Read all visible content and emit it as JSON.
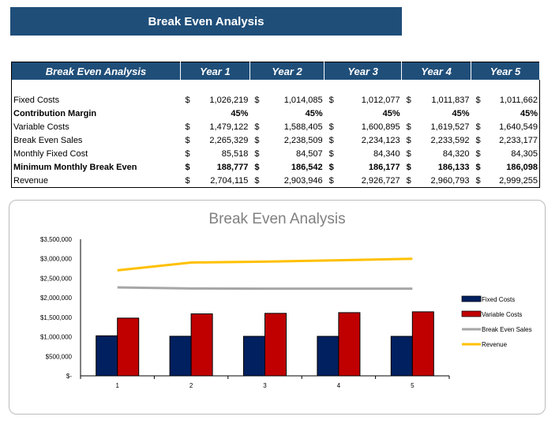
{
  "banner": {
    "title": "Break Even Analysis"
  },
  "table": {
    "header": [
      "Break Even Analysis",
      "Year 1",
      "Year 2",
      "Year 3",
      "Year 4",
      "Year 5"
    ],
    "rows": [
      {
        "label": "Fixed Costs",
        "bold": false,
        "currency": true,
        "values": [
          "1,026,219",
          "1,014,085",
          "1,012,077",
          "1,011,837",
          "1,011,662"
        ]
      },
      {
        "label": "Contribution Margin",
        "bold": true,
        "currency": false,
        "values": [
          "45%",
          "45%",
          "45%",
          "45%",
          "45%"
        ]
      },
      {
        "label": "Variable Costs",
        "bold": false,
        "currency": true,
        "values": [
          "1,479,122",
          "1,588,405",
          "1,600,895",
          "1,619,527",
          "1,640,549"
        ]
      },
      {
        "label": "Break Even Sales",
        "bold": false,
        "currency": true,
        "values": [
          "2,265,329",
          "2,238,509",
          "2,234,123",
          "2,233,592",
          "2,233,177"
        ]
      },
      {
        "label": "Monthly Fixed Cost",
        "bold": false,
        "currency": true,
        "values": [
          "85,518",
          "84,507",
          "84,340",
          "84,320",
          "84,305"
        ]
      },
      {
        "label": "Minimum Monthly Break Even",
        "bold": true,
        "currency": true,
        "values": [
          "188,777",
          "186,542",
          "186,177",
          "186,133",
          "186,098"
        ]
      },
      {
        "label": "Revenue",
        "bold": false,
        "currency": true,
        "values": [
          "2,704,115",
          "2,903,946",
          "2,926,727",
          "2,960,793",
          "2,999,255"
        ]
      }
    ],
    "currency_symbol": "$"
  },
  "chart_data": {
    "type": "bar",
    "title": "Break Even Analysis",
    "categories": [
      "1",
      "2",
      "3",
      "4",
      "5"
    ],
    "ylim": [
      0,
      3500000
    ],
    "yticks": [
      "$-",
      "$500,000",
      "$1,000,000",
      "$1,500,000",
      "$2,000,000",
      "$2,500,000",
      "$3,000,000",
      "$3,500,000"
    ],
    "grid": false,
    "legend": "right",
    "series": [
      {
        "name": "Fixed Costs",
        "kind": "bar",
        "color": "#002060",
        "values": [
          1026219,
          1014085,
          1012077,
          1011837,
          1011662
        ]
      },
      {
        "name": "Variable Costs",
        "kind": "bar",
        "color": "#c00000",
        "values": [
          1479122,
          1588405,
          1600895,
          1619527,
          1640549
        ]
      },
      {
        "name": "Break Even Sales",
        "kind": "line",
        "color": "#a6a6a6",
        "values": [
          2265329,
          2238509,
          2234123,
          2233592,
          2233177
        ]
      },
      {
        "name": "Revenue",
        "kind": "line",
        "color": "#ffc000",
        "values": [
          2704115,
          2903946,
          2926727,
          2960793,
          2999255
        ]
      }
    ]
  }
}
